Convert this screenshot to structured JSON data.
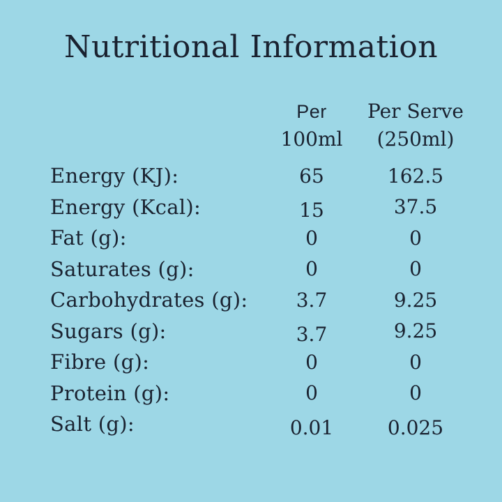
{
  "title": "Nutritional Information",
  "colors": {
    "background": "#9DD7E6",
    "text": "#1A2230"
  },
  "table": {
    "columns": [
      {
        "line1": "Per",
        "line2": "100ml"
      },
      {
        "line1": "Per Serve",
        "line2": "(250ml)"
      }
    ],
    "rows": [
      {
        "label": "Energy (KJ):",
        "per_100ml": "65",
        "per_serve": "162.5"
      },
      {
        "label": "Energy (Kcal):",
        "per_100ml": "15",
        "per_serve": "37.5"
      },
      {
        "label": "Fat (g):",
        "per_100ml": "0",
        "per_serve": "0"
      },
      {
        "label": "Saturates (g):",
        "per_100ml": "0",
        "per_serve": "0"
      },
      {
        "label": "Carbohydrates (g):",
        "per_100ml": "3.7",
        "per_serve": "9.25"
      },
      {
        "label": "Sugars (g):",
        "per_100ml": "3.7",
        "per_serve": "9.25"
      },
      {
        "label": "Fibre (g):",
        "per_100ml": "0",
        "per_serve": "0"
      },
      {
        "label": "Protein (g):",
        "per_100ml": "0",
        "per_serve": "0"
      },
      {
        "label": "Salt (g):",
        "per_100ml": "0.01",
        "per_serve": "0.025"
      }
    ]
  }
}
